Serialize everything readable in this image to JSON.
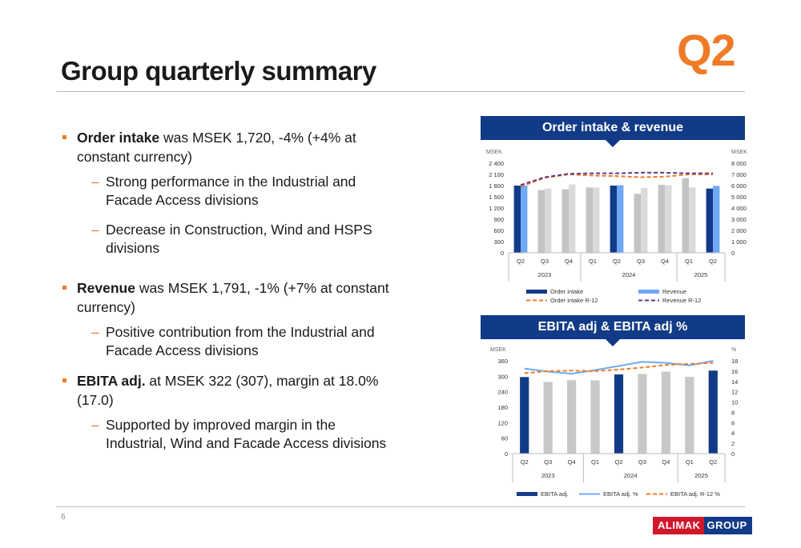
{
  "badge": "Q2",
  "title": "Group quarterly summary",
  "page_number": "6",
  "bullets": [
    {
      "bold": "Order intake",
      "text": " was MSEK 1,720, -4% (+4% at constant currency)",
      "subs": [
        "Strong performance in the Industrial and Facade Access divisions",
        "Decrease in Construction, Wind and HSPS divisions"
      ]
    },
    {
      "bold": "Revenue",
      "text": " was MSEK 1,791, -1% (+7% at constant currency)",
      "subs": [
        "Positive contribution from the Industrial and Facade Access divisions"
      ]
    },
    {
      "bold": "EBITA adj.",
      "text": " at MSEK 322 (307), margin at 18.0% (17.0)",
      "subs": [
        "Supported by improved margin in the Industrial, Wind and Facade Access divisions"
      ]
    }
  ],
  "logo": {
    "part1": "ALIMAK",
    "part2": "GROUP"
  },
  "colors": {
    "accent": "#f07a26",
    "navy": "#123b87",
    "light_blue": "#6fa8f5",
    "gray_bar": "#c8c8c8",
    "purple": "#5b3a8e",
    "logo_red": "#d0182c"
  },
  "chart_data": [
    {
      "type": "bar",
      "title": "Order intake & revenue",
      "ylabel_left": "MSEK",
      "ylabel_right": "MSEK",
      "categories": [
        "Q2",
        "Q3",
        "Q4",
        "Q1",
        "Q2",
        "Q3",
        "Q4",
        "Q1",
        "Q2"
      ],
      "years": [
        {
          "label": "2023",
          "span": [
            0,
            2
          ]
        },
        {
          "label": "2024",
          "span": [
            3,
            6
          ]
        },
        {
          "label": "2025",
          "span": [
            7,
            8
          ]
        }
      ],
      "ylim_left": [
        0,
        2400
      ],
      "yticks_left": [
        "0",
        "300",
        "600",
        "900",
        "1 200",
        "1 500",
        "1 800",
        "2 100",
        "2 400"
      ],
      "ylim_right": [
        0,
        8000
      ],
      "yticks_right": [
        "0",
        "1 000",
        "2 000",
        "3 000",
        "4 000",
        "5 000",
        "6 000",
        "7 000",
        "8 000"
      ],
      "series": [
        {
          "name": "Order intake",
          "kind": "bar",
          "axis": "left",
          "values": [
            1800,
            1680,
            1700,
            1750,
            1800,
            1580,
            1820,
            2000,
            1720
          ]
        },
        {
          "name": "Revenue",
          "kind": "bar",
          "axis": "left",
          "values": [
            1800,
            1720,
            1830,
            1750,
            1810,
            1740,
            1810,
            1750,
            1791
          ]
        },
        {
          "name": "Order intake R-12",
          "kind": "line",
          "axis": "right",
          "values": [
            5900,
            6700,
            7000,
            6900,
            6850,
            6750,
            6800,
            7000,
            7000
          ]
        },
        {
          "name": "Revenue R-12",
          "kind": "line",
          "axis": "right",
          "values": [
            6050,
            6750,
            7050,
            7100,
            7100,
            7150,
            7150,
            7100,
            7100
          ]
        }
      ],
      "highlight_index": [
        0,
        4,
        8
      ]
    },
    {
      "type": "bar",
      "title": "EBITA adj & EBITA adj %",
      "ylabel_left": "MSEK",
      "ylabel_right": "%",
      "categories": [
        "Q2",
        "Q3",
        "Q4",
        "Q1",
        "Q2",
        "Q3",
        "Q4",
        "Q1",
        "Q2"
      ],
      "years": [
        {
          "label": "2023",
          "span": [
            0,
            2
          ]
        },
        {
          "label": "2024",
          "span": [
            3,
            6
          ]
        },
        {
          "label": "2025",
          "span": [
            7,
            8
          ]
        }
      ],
      "ylim_left": [
        0,
        360
      ],
      "yticks_left": [
        "0",
        "60",
        "120",
        "180",
        "240",
        "300",
        "360"
      ],
      "ylim_right": [
        0,
        18
      ],
      "yticks_right": [
        "0",
        "2",
        "4",
        "6",
        "8",
        "10",
        "12",
        "14",
        "16",
        "18"
      ],
      "series": [
        {
          "name": "EBITA adj.",
          "kind": "bar",
          "axis": "left",
          "values": [
            297,
            278,
            285,
            284,
            307,
            309,
            318,
            298,
            322
          ]
        },
        {
          "name": "EBITA adj. %",
          "kind": "line",
          "axis": "right",
          "values": [
            16.5,
            15.9,
            15.5,
            16.2,
            17.0,
            17.8,
            17.6,
            17.1,
            18.0
          ]
        },
        {
          "name": "EBITA adj. R-12 %",
          "kind": "line",
          "axis": "right",
          "values": [
            15.6,
            16.0,
            16.1,
            16.0,
            16.3,
            16.7,
            17.2,
            17.4,
            17.6
          ]
        }
      ],
      "highlight_index": [
        0,
        4,
        8
      ]
    }
  ]
}
